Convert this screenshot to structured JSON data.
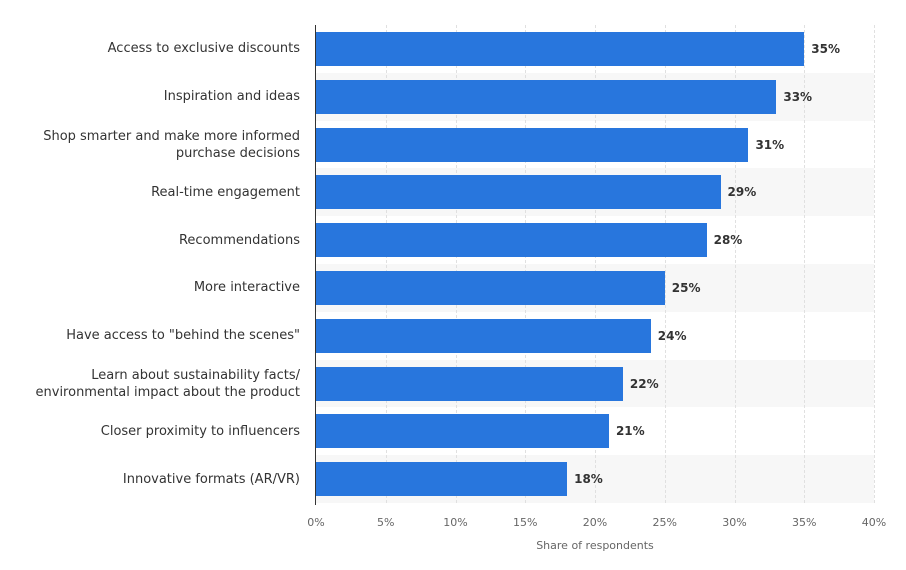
{
  "chart_data": {
    "type": "bar",
    "orientation": "horizontal",
    "categories": [
      "Access to exclusive discounts",
      "Inspiration and ideas",
      "Shop smarter and make more informed\npurchase decisions",
      "Real-time engagement",
      "Recommendations",
      "More interactive",
      "Have access to \"behind the scenes\"",
      "Learn about sustainability facts/\nenvironmental impact about the product",
      "Closer proximity to influencers",
      "Innovative formats (AR/VR)"
    ],
    "values": [
      35,
      33,
      31,
      29,
      28,
      25,
      24,
      22,
      21,
      18
    ],
    "value_labels": [
      "35%",
      "33%",
      "31%",
      "29%",
      "28%",
      "25%",
      "24%",
      "22%",
      "21%",
      "18%"
    ],
    "xlim": [
      0,
      40
    ],
    "ticks": [
      0,
      5,
      10,
      15,
      20,
      25,
      30,
      35,
      40
    ],
    "tick_labels": [
      "0%",
      "5%",
      "10%",
      "15%",
      "20%",
      "25%",
      "30%",
      "35%",
      "40%"
    ],
    "xlabel": "Share of respondents",
    "ylabel": "",
    "title": "",
    "bar_color": "#2876dd",
    "grid": true
  }
}
